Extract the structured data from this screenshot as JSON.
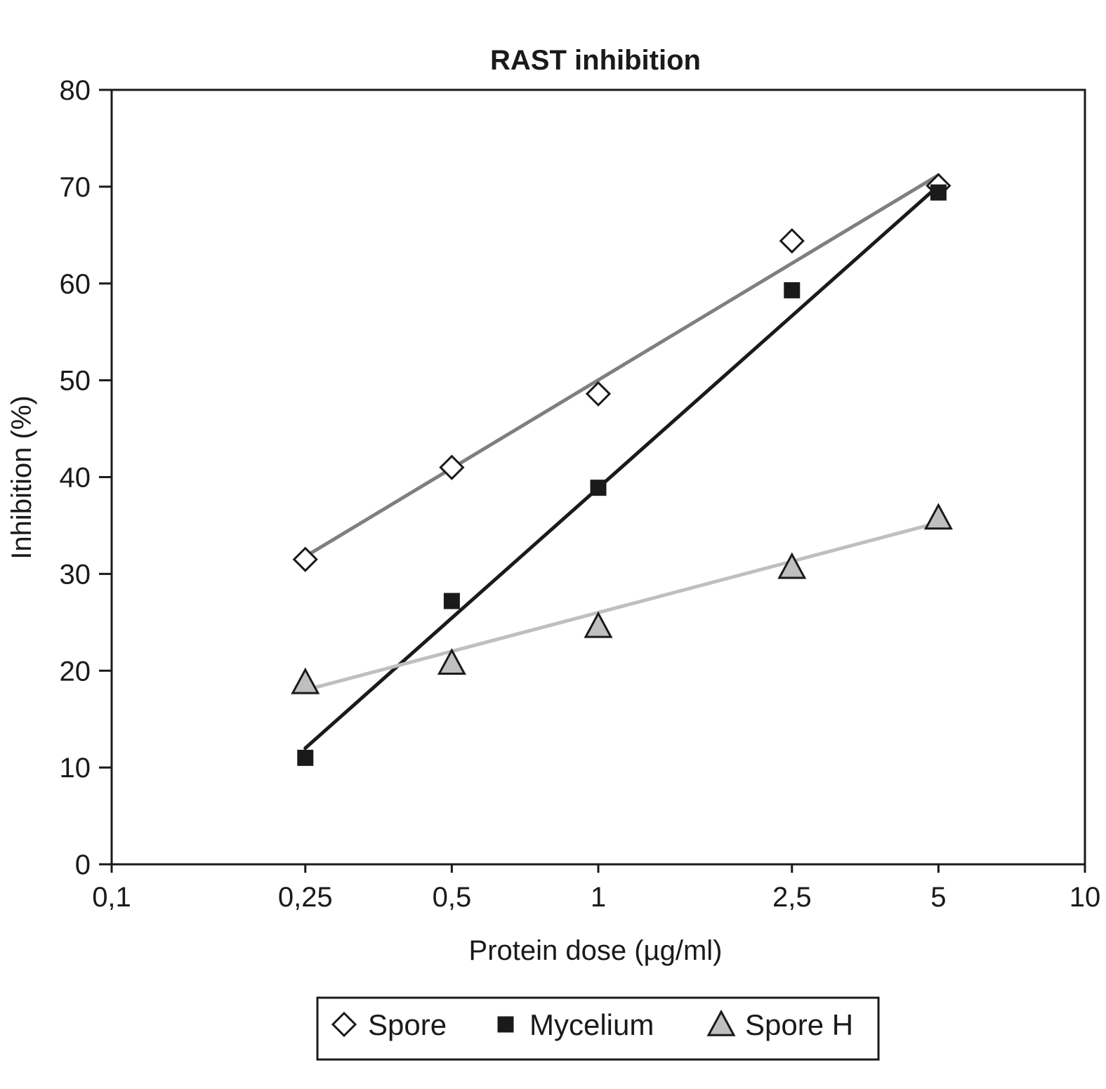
{
  "chart_data": {
    "type": "scatter",
    "title": "RAST inhibition",
    "xlabel": "Protein dose (µg/ml)",
    "ylabel": "Inhibition (%)",
    "x_scale": "log",
    "xlim": [
      0.1,
      10
    ],
    "ylim": [
      0,
      80
    ],
    "x_ticks": [
      {
        "value": 0.1,
        "label": "0,1"
      },
      {
        "value": 0.25,
        "label": "0,25"
      },
      {
        "value": 0.5,
        "label": "0,5"
      },
      {
        "value": 1,
        "label": "1"
      },
      {
        "value": 2.5,
        "label": "2,5"
      },
      {
        "value": 5,
        "label": "5"
      },
      {
        "value": 10,
        "label": "10"
      }
    ],
    "y_ticks": [
      {
        "value": 0,
        "label": "0"
      },
      {
        "value": 10,
        "label": "10"
      },
      {
        "value": 20,
        "label": "20"
      },
      {
        "value": 30,
        "label": "30"
      },
      {
        "value": 40,
        "label": "40"
      },
      {
        "value": 50,
        "label": "50"
      },
      {
        "value": 60,
        "label": "60"
      },
      {
        "value": 70,
        "label": "70"
      },
      {
        "value": 80,
        "label": "80"
      }
    ],
    "grid": false,
    "legend_position": "bottom",
    "series": [
      {
        "name": "Spore",
        "marker": "diamond-open",
        "line_color": "#7f7f7f",
        "x": [
          0.25,
          0.5,
          1,
          2.5,
          5
        ],
        "y": [
          31.5,
          41,
          48.6,
          64.4,
          70.1
        ],
        "trend": {
          "x": [
            0.25,
            5
          ],
          "y": [
            31.8,
            71.2
          ]
        }
      },
      {
        "name": "Mycelium",
        "marker": "square-filled",
        "line_color": "#1a1a1a",
        "x": [
          0.25,
          0.5,
          1,
          2.5,
          5
        ],
        "y": [
          11,
          27.2,
          38.9,
          59.3,
          69.4
        ],
        "trend": {
          "x": [
            0.25,
            5
          ],
          "y": [
            12,
            70.1
          ]
        }
      },
      {
        "name": "Spore H",
        "marker": "triangle-gray",
        "line_color": "#bfbfbf",
        "x": [
          0.25,
          0.5,
          1,
          2.5,
          5
        ],
        "y": [
          18.8,
          20.8,
          24.6,
          30.7,
          35.8
        ],
        "trend": {
          "x": [
            0.25,
            5
          ],
          "y": [
            18,
            35.3
          ]
        }
      }
    ]
  }
}
